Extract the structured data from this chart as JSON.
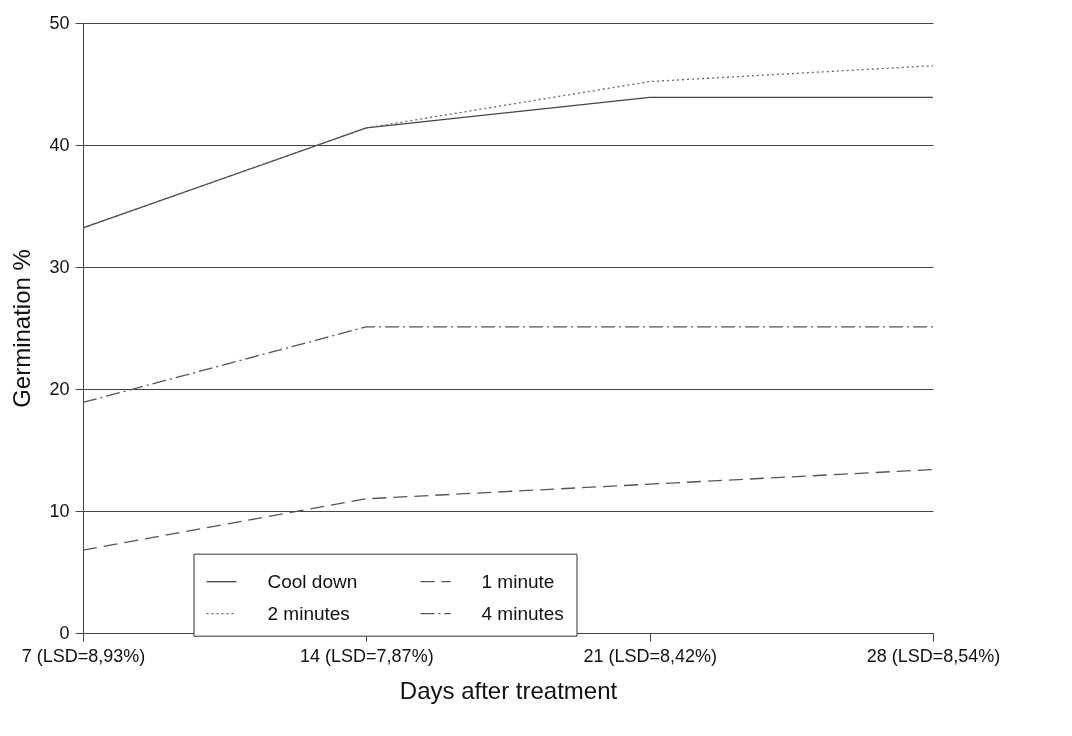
{
  "chart_data": {
    "type": "line",
    "xlabel": "Days after treatment",
    "ylabel": "Germination %",
    "categories": [
      "7 (LSD=8,93%)",
      "14 (LSD=7,87%)",
      "21 (LSD=8,42%)",
      "28 (LSD=8,54%)"
    ],
    "series": [
      {
        "name": "Cool down",
        "color": "#444444",
        "line_style": "solid",
        "values": [
          33.2,
          41.4,
          43.9,
          43.9
        ]
      },
      {
        "name": "1 minute",
        "color": "#555555",
        "line_style": "dashed",
        "values": [
          6.8,
          11.0,
          12.2,
          13.4
        ]
      },
      {
        "name": "2 minutes",
        "color": "#666666",
        "line_style": "dotted",
        "values": [
          33.2,
          41.4,
          45.2,
          46.5
        ]
      },
      {
        "name": "4 minutes",
        "color": "#555555",
        "line_style": "dashdot",
        "values": [
          18.9,
          25.1,
          25.1,
          25.1
        ]
      }
    ],
    "ylim": [
      0,
      50
    ],
    "yticks": [
      0,
      10,
      20,
      30,
      40,
      50
    ],
    "grid": "y",
    "legend": "bottom",
    "marker": "none"
  }
}
